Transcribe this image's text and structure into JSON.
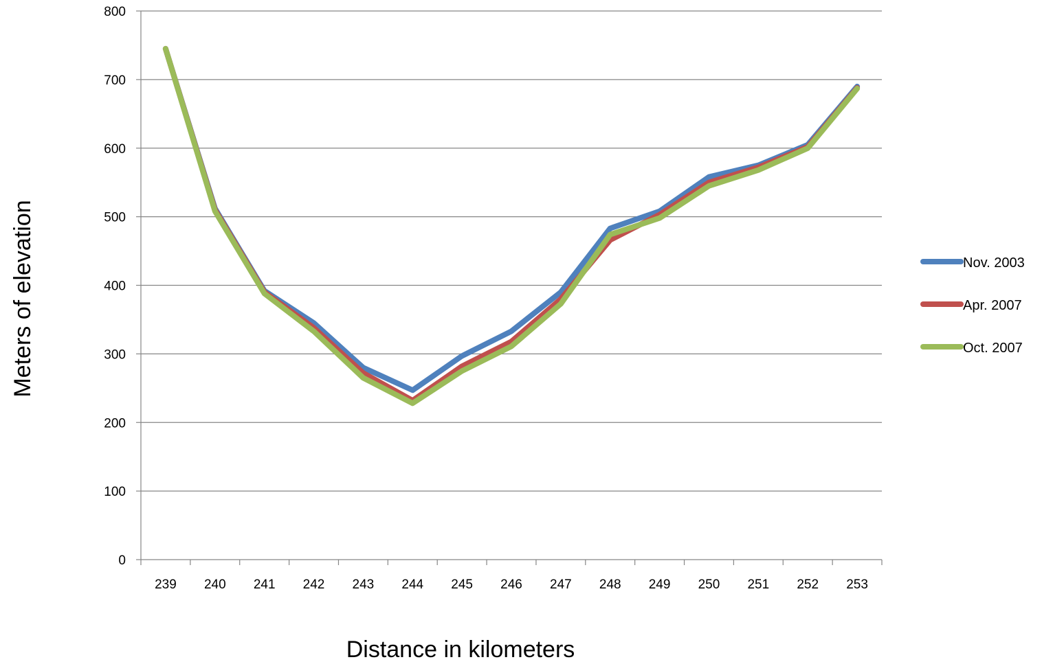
{
  "chart_data": {
    "type": "line",
    "title": "",
    "xlabel": "Distance in kilometers",
    "ylabel": "Meters of elevation",
    "x": [
      239,
      240,
      241,
      242,
      243,
      244,
      245,
      246,
      247,
      248,
      249,
      250,
      251,
      252,
      253
    ],
    "x_tick_labels": [
      "239",
      "240",
      "241",
      "242",
      "243",
      "244",
      "245",
      "246",
      "247",
      "248",
      "249",
      "250",
      "251",
      "252",
      "253"
    ],
    "ylim": [
      0,
      800
    ],
    "y_ticks": [
      0,
      100,
      200,
      300,
      400,
      500,
      600,
      700,
      800
    ],
    "y_tick_labels": [
      "0",
      "100",
      "200",
      "300",
      "400",
      "500",
      "600",
      "700",
      "800"
    ],
    "grid": true,
    "legend_position": "right",
    "series": [
      {
        "name": "Nov. 2003",
        "color": "#4F81BD",
        "values": [
          745,
          512,
          392,
          345,
          280,
          247,
          297,
          333,
          390,
          483,
          508,
          558,
          575,
          605,
          690
        ]
      },
      {
        "name": "Apr. 2007",
        "color": "#C0504D",
        "values": [
          745,
          510,
          390,
          338,
          272,
          232,
          282,
          318,
          380,
          466,
          503,
          550,
          572,
          602,
          688
        ]
      },
      {
        "name": "Oct. 2007",
        "color": "#9BBB59",
        "values": [
          745,
          508,
          388,
          333,
          265,
          228,
          275,
          311,
          373,
          474,
          498,
          545,
          568,
          600,
          687
        ]
      }
    ]
  }
}
